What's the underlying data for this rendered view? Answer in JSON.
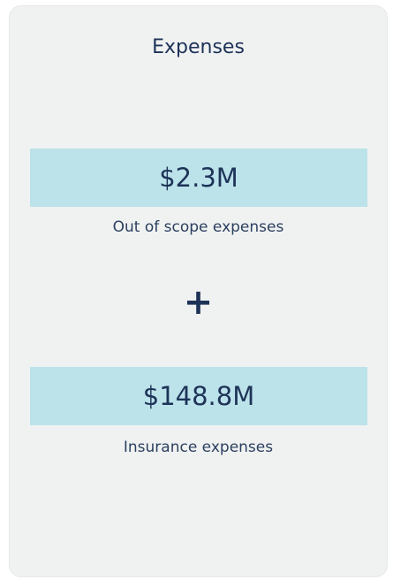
{
  "title": "Expenses",
  "items": [
    {
      "value": "$2.3M",
      "label": "Out of scope expenses"
    },
    {
      "value": "$148.8M",
      "label": "Insurance expenses"
    }
  ],
  "operator": "+"
}
